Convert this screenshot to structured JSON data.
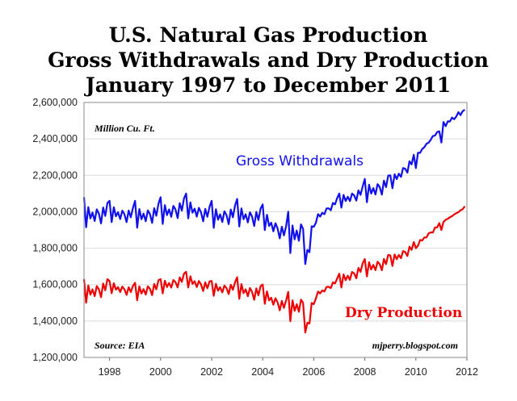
{
  "chart_data": {
    "type": "line",
    "title_lines": [
      "U.S. Natural Gas Production",
      "Gross Withdrawals and Dry Production",
      "January 1997 to December 2011"
    ],
    "unit_note": "Million Cu. Ft.",
    "source_note": "Source: EIA",
    "credit": "mjperry.blogspot.com",
    "x_range": [
      "1997-01",
      "2011-12"
    ],
    "x_ticks": [
      "1998",
      "2000",
      "2002",
      "2004",
      "2006",
      "2008",
      "2010",
      "2012"
    ],
    "ylim": [
      1200000,
      2600000
    ],
    "y_ticks": [
      "1,200,000",
      "1,400,000",
      "1,600,000",
      "1,800,000",
      "2,000,000",
      "2,200,000",
      "2,400,000",
      "2,600,000"
    ],
    "grid": "horizontal",
    "series": [
      {
        "name": "Gross Withdrawals",
        "color": "#1010ee",
        "annual_anchor_values": [
          2000000,
          2010000,
          1990000,
          2010000,
          2040000,
          1990000,
          2000000,
          1980000,
          1880000,
          1960000,
          2070000,
          2120000,
          2170000,
          2300000,
          2460000
        ],
        "january_values": [
          2080000,
          2060000,
          2060000,
          2080000,
          2100000,
          2060000,
          2070000,
          2040000,
          2000000,
          1960000,
          2100000,
          2180000,
          2200000,
          2240000,
          2380000
        ],
        "december_value": 2560000
      },
      {
        "name": "Dry Production",
        "color": "#ee0000",
        "annual_anchor_values": [
          1570000,
          1600000,
          1570000,
          1600000,
          1640000,
          1590000,
          1590000,
          1560000,
          1480000,
          1540000,
          1630000,
          1700000,
          1740000,
          1820000,
          1940000
        ],
        "january_values": [
          1630000,
          1620000,
          1610000,
          1630000,
          1670000,
          1620000,
          1640000,
          1600000,
          1560000,
          1530000,
          1660000,
          1740000,
          1760000,
          1800000,
          1900000
        ],
        "december_value": 2030000
      }
    ]
  }
}
